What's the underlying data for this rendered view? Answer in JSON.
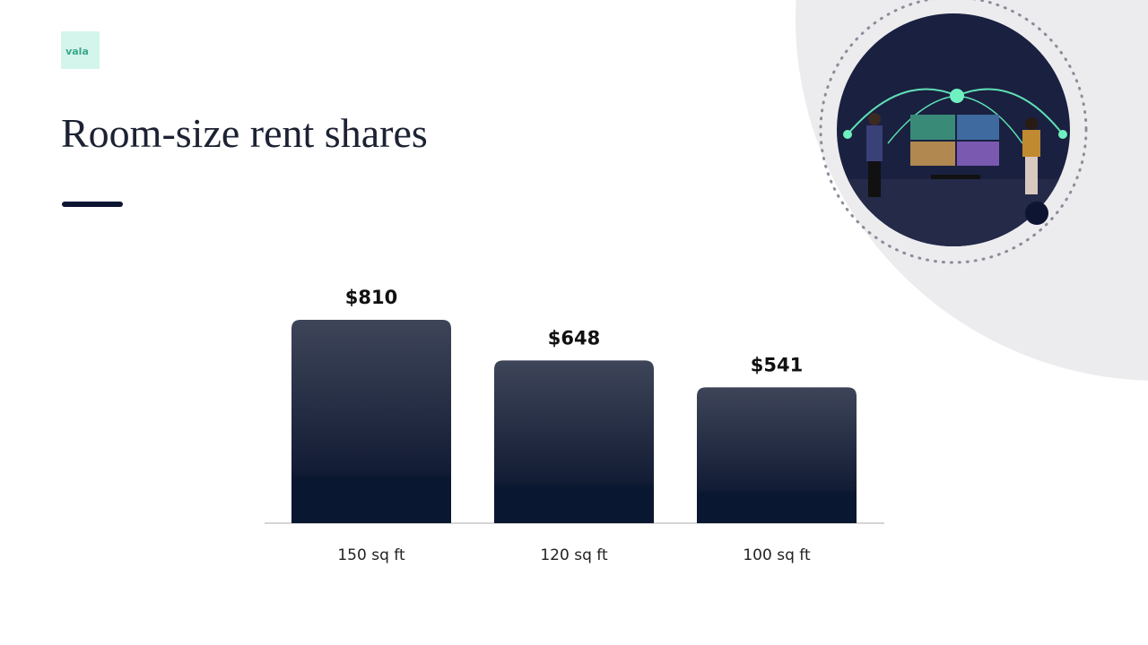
{
  "logo": "vala",
  "chart_data": {
    "type": "bar",
    "title": "Room-size rent shares",
    "categories": [
      "150 sq ft",
      "120 sq ft",
      "100 sq ft"
    ],
    "values": [
      810,
      648,
      541
    ],
    "value_labels": [
      "$810",
      "$648",
      "$541"
    ],
    "color": "#1c2438"
  }
}
